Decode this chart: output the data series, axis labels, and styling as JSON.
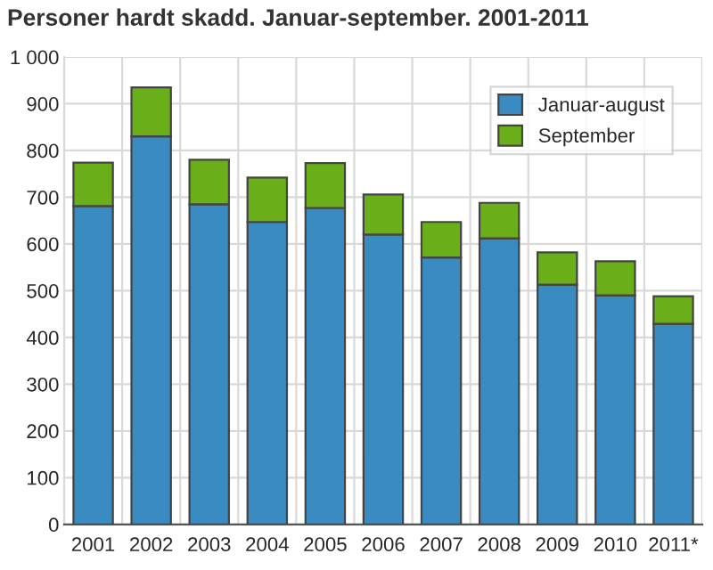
{
  "chart_data": {
    "type": "bar",
    "title": "Personer hardt skadd. Januar-september. 2001-2011",
    "categories": [
      "2001",
      "2002",
      "2003",
      "2004",
      "2005",
      "2006",
      "2007",
      "2008",
      "2009",
      "2010",
      "2011*"
    ],
    "stacked": true,
    "series": [
      {
        "name": "Januar-august",
        "color": "#3a8bc2",
        "values": [
          681,
          830,
          685,
          647,
          677,
          620,
          571,
          612,
          513,
          490,
          429
        ]
      },
      {
        "name": "September",
        "color": "#6aaf19",
        "values": [
          93,
          105,
          95,
          95,
          96,
          86,
          76,
          76,
          69,
          73,
          59
        ]
      }
    ],
    "ylim": [
      0,
      1000
    ],
    "yticks": [
      0,
      100,
      200,
      300,
      400,
      500,
      600,
      700,
      800,
      900,
      {
        "value": 1000,
        "label": "1 000"
      }
    ],
    "grid": true,
    "legend": "top right"
  }
}
